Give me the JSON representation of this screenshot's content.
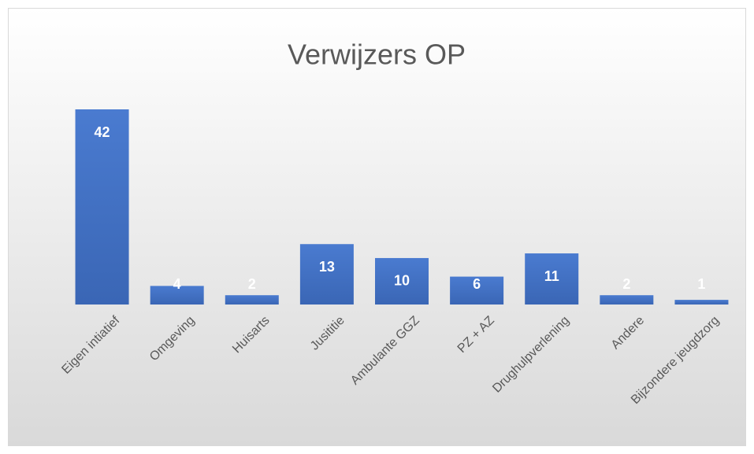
{
  "chart_data": {
    "type": "bar",
    "title": "Verwijzers OP",
    "categories": [
      "Eigen intiatief",
      "Omgeving",
      "Huisarts",
      "Jusititie",
      "Ambulante GGZ",
      "PZ + AZ",
      "Drughulpverlening",
      "Andere",
      "Bijzondere jeugdzorg"
    ],
    "values": [
      42,
      4,
      2,
      13,
      10,
      6,
      11,
      2,
      1
    ],
    "color": "#4472c4"
  }
}
